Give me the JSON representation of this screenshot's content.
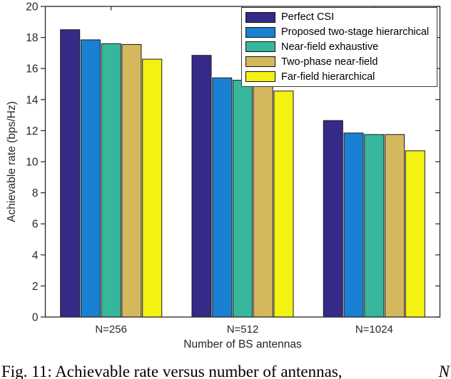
{
  "figure": {
    "caption_prefix": "Fig. 11: Achievable rate versus number of antennas,",
    "caption_math": "N"
  },
  "chart_data": {
    "type": "bar",
    "title": "",
    "xlabel": "Number of BS antennas",
    "ylabel": "Achievable rate (bps/Hz)",
    "categories": [
      "N=256",
      "N=512",
      "N=1024"
    ],
    "series": [
      {
        "name": "Perfect CSI",
        "color": "#352a87",
        "values": [
          18.5,
          16.85,
          12.65
        ]
      },
      {
        "name": "Proposed two-stage hierarchical",
        "color": "#1a80d3",
        "values": [
          17.85,
          15.4,
          11.85
        ]
      },
      {
        "name": "Near-field exhaustive",
        "color": "#36b79b",
        "values": [
          17.6,
          15.25,
          11.75
        ]
      },
      {
        "name": "Two-phase near-field",
        "color": "#d5b85e",
        "values": [
          17.55,
          14.9,
          11.75
        ]
      },
      {
        "name": "Far-field hierarchical",
        "color": "#f4f210",
        "values": [
          16.6,
          14.55,
          10.7
        ]
      }
    ],
    "ylim": [
      0,
      20
    ],
    "ytick_step": 2,
    "yticks": [
      0,
      2,
      4,
      6,
      8,
      10,
      12,
      14,
      16,
      18,
      20
    ],
    "legend_position": "top-right",
    "grid": false,
    "axis_color": "#262626",
    "bar_edge_color": "#1a1a1a"
  }
}
